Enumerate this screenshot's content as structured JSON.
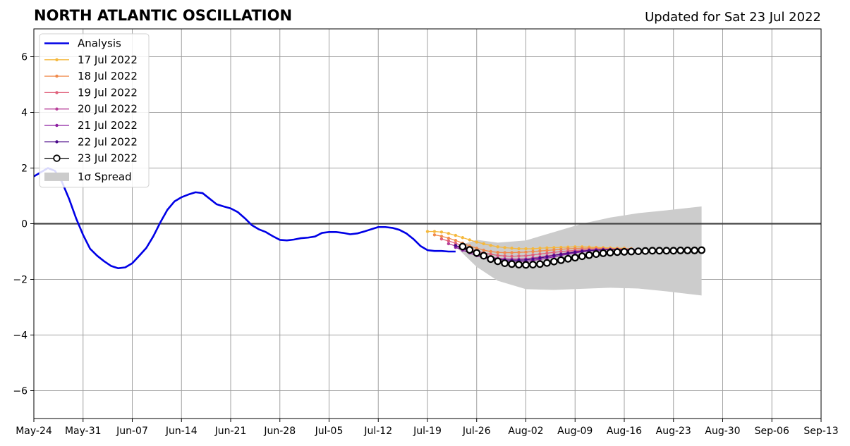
{
  "chart_data": {
    "type": "line",
    "title": "NORTH ATLANTIC OSCILLATION",
    "subtitle": "Updated for Sat 23 Jul 2022",
    "xlabel": "",
    "ylabel": "",
    "xlim": [
      "2022-05-24",
      "2022-09-13"
    ],
    "ylim": [
      -7,
      7
    ],
    "grid": true,
    "legend_position": "top-left",
    "x_ticks": [
      "2022-05-24",
      "2022-05-31",
      "2022-06-07",
      "2022-06-14",
      "2022-06-21",
      "2022-06-28",
      "2022-07-05",
      "2022-07-12",
      "2022-07-19",
      "2022-07-26",
      "2022-08-02",
      "2022-08-09",
      "2022-08-16",
      "2022-08-23",
      "2022-08-30",
      "2022-09-06",
      "2022-09-13"
    ],
    "x_tick_labels": [
      "May-24",
      "May-31",
      "Jun-07",
      "Jun-14",
      "Jun-21",
      "Jun-28",
      "Jul-05",
      "Jul-12",
      "Jul-19",
      "Jul-26",
      "Aug-02",
      "Aug-09",
      "Aug-16",
      "Aug-23",
      "Aug-30",
      "Sep-06",
      "Sep-13"
    ],
    "y_ticks": [
      -6,
      -4,
      -2,
      0,
      2,
      4,
      6
    ],
    "y_tick_labels": [
      "−6",
      "−4",
      "−2",
      "0",
      "2",
      "4",
      "6"
    ],
    "series": [
      {
        "name": "Analysis",
        "color": "#0000e6",
        "x": [
          "2022-05-24",
          "2022-05-26",
          "2022-05-27",
          "2022-05-28",
          "2022-05-29",
          "2022-05-30",
          "2022-05-31",
          "2022-06-01",
          "2022-06-02",
          "2022-06-03",
          "2022-06-04",
          "2022-06-05",
          "2022-06-06",
          "2022-06-07",
          "2022-06-08",
          "2022-06-09",
          "2022-06-10",
          "2022-06-11",
          "2022-06-12",
          "2022-06-13",
          "2022-06-14",
          "2022-06-15",
          "2022-06-16",
          "2022-06-17",
          "2022-06-18",
          "2022-06-19",
          "2022-06-20",
          "2022-06-21",
          "2022-06-22",
          "2022-06-23",
          "2022-06-24",
          "2022-06-25",
          "2022-06-26",
          "2022-06-27",
          "2022-06-28",
          "2022-06-29",
          "2022-06-30",
          "2022-07-01",
          "2022-07-02",
          "2022-07-03",
          "2022-07-04",
          "2022-07-05",
          "2022-07-06",
          "2022-07-07",
          "2022-07-08",
          "2022-07-09",
          "2022-07-10",
          "2022-07-11",
          "2022-07-12",
          "2022-07-13",
          "2022-07-14",
          "2022-07-15",
          "2022-07-16",
          "2022-07-17",
          "2022-07-18",
          "2022-07-19",
          "2022-07-20",
          "2022-07-21",
          "2022-07-22",
          "2022-07-23"
        ],
        "values": [
          1.7,
          2.0,
          1.9,
          1.5,
          0.9,
          0.2,
          -0.4,
          -0.9,
          -1.15,
          -1.35,
          -1.52,
          -1.6,
          -1.57,
          -1.42,
          -1.15,
          -0.87,
          -0.45,
          0.05,
          0.5,
          0.8,
          0.95,
          1.05,
          1.13,
          1.1,
          0.9,
          0.7,
          0.62,
          0.55,
          0.42,
          0.2,
          -0.05,
          -0.2,
          -0.3,
          -0.45,
          -0.58,
          -0.6,
          -0.57,
          -0.52,
          -0.5,
          -0.46,
          -0.33,
          -0.3,
          -0.3,
          -0.33,
          -0.38,
          -0.35,
          -0.28,
          -0.2,
          -0.12,
          -0.12,
          -0.15,
          -0.22,
          -0.35,
          -0.55,
          -0.8,
          -0.95,
          -0.98,
          -0.98,
          -1.0,
          -1.0
        ]
      },
      {
        "name": "17 Jul 2022",
        "color": "#f5b83d",
        "x": [
          "2022-07-19",
          "2022-07-20",
          "2022-07-21",
          "2022-07-22",
          "2022-07-23",
          "2022-07-24",
          "2022-07-25",
          "2022-07-26",
          "2022-07-27",
          "2022-07-28",
          "2022-07-29",
          "2022-07-30",
          "2022-07-31",
          "2022-08-01",
          "2022-08-02",
          "2022-08-03",
          "2022-08-04",
          "2022-08-05",
          "2022-08-06",
          "2022-08-07",
          "2022-08-08",
          "2022-08-09",
          "2022-08-10",
          "2022-08-11",
          "2022-08-12",
          "2022-08-13",
          "2022-08-14",
          "2022-08-15",
          "2022-08-16"
        ],
        "values": [
          -0.28,
          -0.28,
          -0.3,
          -0.35,
          -0.42,
          -0.5,
          -0.58,
          -0.66,
          -0.72,
          -0.78,
          -0.83,
          -0.86,
          -0.88,
          -0.9,
          -0.9,
          -0.9,
          -0.88,
          -0.87,
          -0.86,
          -0.85,
          -0.84,
          -0.83,
          -0.83,
          -0.84,
          -0.85,
          -0.86,
          -0.87,
          -0.88,
          -0.88
        ]
      },
      {
        "name": "18 Jul 2022",
        "color": "#f08a4b",
        "x": [
          "2022-07-20",
          "2022-07-21",
          "2022-07-22",
          "2022-07-23",
          "2022-07-24",
          "2022-07-25",
          "2022-07-26",
          "2022-07-27",
          "2022-07-28",
          "2022-07-29",
          "2022-07-30",
          "2022-07-31",
          "2022-08-01",
          "2022-08-02",
          "2022-08-03",
          "2022-08-04",
          "2022-08-05",
          "2022-08-06",
          "2022-08-07",
          "2022-08-08",
          "2022-08-09",
          "2022-08-10",
          "2022-08-11",
          "2022-08-12",
          "2022-08-13",
          "2022-08-14",
          "2022-08-15",
          "2022-08-16",
          "2022-08-17"
        ],
        "values": [
          -0.4,
          -0.45,
          -0.52,
          -0.6,
          -0.7,
          -0.8,
          -0.88,
          -0.95,
          -1.0,
          -1.03,
          -1.04,
          -1.04,
          -1.03,
          -1.02,
          -1.0,
          -0.98,
          -0.96,
          -0.94,
          -0.92,
          -0.9,
          -0.89,
          -0.88,
          -0.88,
          -0.88,
          -0.89,
          -0.9,
          -0.9,
          -0.9,
          -0.9
        ]
      },
      {
        "name": "19 Jul 2022",
        "color": "#e0607a",
        "x": [
          "2022-07-21",
          "2022-07-22",
          "2022-07-23",
          "2022-07-24",
          "2022-07-25",
          "2022-07-26",
          "2022-07-27",
          "2022-07-28",
          "2022-07-29",
          "2022-07-30",
          "2022-07-31",
          "2022-08-01",
          "2022-08-02",
          "2022-08-03",
          "2022-08-04",
          "2022-08-05",
          "2022-08-06",
          "2022-08-07",
          "2022-08-08",
          "2022-08-09",
          "2022-08-10",
          "2022-08-11",
          "2022-08-12",
          "2022-08-13",
          "2022-08-14",
          "2022-08-15",
          "2022-08-16",
          "2022-08-17",
          "2022-08-18"
        ],
        "values": [
          -0.55,
          -0.62,
          -0.7,
          -0.8,
          -0.9,
          -0.98,
          -1.05,
          -1.1,
          -1.14,
          -1.16,
          -1.17,
          -1.16,
          -1.15,
          -1.12,
          -1.09,
          -1.06,
          -1.03,
          -1.0,
          -0.98,
          -0.96,
          -0.94,
          -0.93,
          -0.92,
          -0.92,
          -0.92,
          -0.92,
          -0.93,
          -0.93,
          -0.93
        ]
      },
      {
        "name": "20 Jul 2022",
        "color": "#b8409a",
        "x": [
          "2022-07-22",
          "2022-07-23",
          "2022-07-24",
          "2022-07-25",
          "2022-07-26",
          "2022-07-27",
          "2022-07-28",
          "2022-07-29",
          "2022-07-30",
          "2022-07-31",
          "2022-08-01",
          "2022-08-02",
          "2022-08-03",
          "2022-08-04",
          "2022-08-05",
          "2022-08-06",
          "2022-08-07",
          "2022-08-08",
          "2022-08-09",
          "2022-08-10",
          "2022-08-11",
          "2022-08-12",
          "2022-08-13",
          "2022-08-14",
          "2022-08-15",
          "2022-08-16",
          "2022-08-17",
          "2022-08-18",
          "2022-08-19"
        ],
        "values": [
          -0.72,
          -0.8,
          -0.9,
          -1.0,
          -1.08,
          -1.15,
          -1.2,
          -1.24,
          -1.26,
          -1.27,
          -1.27,
          -1.26,
          -1.23,
          -1.2,
          -1.16,
          -1.12,
          -1.08,
          -1.04,
          -1.0,
          -0.97,
          -0.95,
          -0.93,
          -0.92,
          -0.92,
          -0.92,
          -0.93,
          -0.93,
          -0.94,
          -0.94
        ]
      },
      {
        "name": "21 Jul 2022",
        "color": "#8c1fa0",
        "x": [
          "2022-07-23",
          "2022-07-24",
          "2022-07-25",
          "2022-07-26",
          "2022-07-27",
          "2022-07-28",
          "2022-07-29",
          "2022-07-30",
          "2022-07-31",
          "2022-08-01",
          "2022-08-02",
          "2022-08-03",
          "2022-08-04",
          "2022-08-05",
          "2022-08-06",
          "2022-08-07",
          "2022-08-08",
          "2022-08-09",
          "2022-08-10",
          "2022-08-11",
          "2022-08-12",
          "2022-08-13",
          "2022-08-14",
          "2022-08-15",
          "2022-08-16",
          "2022-08-17",
          "2022-08-18",
          "2022-08-19",
          "2022-08-20"
        ],
        "values": [
          -0.85,
          -0.95,
          -1.05,
          -1.15,
          -1.22,
          -1.28,
          -1.32,
          -1.35,
          -1.36,
          -1.36,
          -1.35,
          -1.32,
          -1.28,
          -1.24,
          -1.19,
          -1.14,
          -1.09,
          -1.05,
          -1.01,
          -0.98,
          -0.96,
          -0.94,
          -0.93,
          -0.93,
          -0.93,
          -0.93,
          -0.94,
          -0.94,
          -0.94
        ]
      },
      {
        "name": "22 Jul 2022",
        "color": "#4b0a8a",
        "x": [
          "2022-07-23",
          "2022-07-24",
          "2022-07-25",
          "2022-07-26",
          "2022-07-27",
          "2022-07-28",
          "2022-07-29",
          "2022-07-30",
          "2022-07-31",
          "2022-08-01",
          "2022-08-02",
          "2022-08-03",
          "2022-08-04",
          "2022-08-05",
          "2022-08-06",
          "2022-08-07",
          "2022-08-08",
          "2022-08-09",
          "2022-08-10",
          "2022-08-11",
          "2022-08-12",
          "2022-08-13",
          "2022-08-14",
          "2022-08-15",
          "2022-08-16",
          "2022-08-17",
          "2022-08-18",
          "2022-08-19",
          "2022-08-20",
          "2022-08-21"
        ],
        "values": [
          -0.78,
          -0.88,
          -0.98,
          -1.08,
          -1.16,
          -1.22,
          -1.27,
          -1.3,
          -1.31,
          -1.31,
          -1.3,
          -1.27,
          -1.23,
          -1.19,
          -1.14,
          -1.1,
          -1.06,
          -1.02,
          -0.99,
          -0.96,
          -0.95,
          -0.94,
          -0.93,
          -0.93,
          -0.93,
          -0.93,
          -0.94,
          -0.94,
          -0.95,
          -0.95
        ]
      },
      {
        "name": "23 Jul 2022",
        "color": "#000000",
        "x": [
          "2022-07-24",
          "2022-07-25",
          "2022-07-26",
          "2022-07-27",
          "2022-07-28",
          "2022-07-29",
          "2022-07-30",
          "2022-07-31",
          "2022-08-01",
          "2022-08-02",
          "2022-08-03",
          "2022-08-04",
          "2022-08-05",
          "2022-08-06",
          "2022-08-07",
          "2022-08-08",
          "2022-08-09",
          "2022-08-10",
          "2022-08-11",
          "2022-08-12",
          "2022-08-13",
          "2022-08-14",
          "2022-08-15",
          "2022-08-16",
          "2022-08-17",
          "2022-08-18",
          "2022-08-19",
          "2022-08-20",
          "2022-08-21",
          "2022-08-22",
          "2022-08-23",
          "2022-08-24",
          "2022-08-25",
          "2022-08-26",
          "2022-08-27"
        ],
        "values": [
          -0.82,
          -0.94,
          -1.05,
          -1.15,
          -1.27,
          -1.35,
          -1.42,
          -1.45,
          -1.47,
          -1.48,
          -1.47,
          -1.45,
          -1.41,
          -1.36,
          -1.31,
          -1.26,
          -1.22,
          -1.17,
          -1.13,
          -1.09,
          -1.06,
          -1.04,
          -1.02,
          -1.01,
          -1.0,
          -0.99,
          -0.98,
          -0.97,
          -0.97,
          -0.97,
          -0.97,
          -0.96,
          -0.96,
          -0.96,
          -0.95
        ]
      }
    ],
    "spread": {
      "name": "1σ Spread",
      "color": "#cccccc",
      "x": [
        "2022-07-23",
        "2022-07-26",
        "2022-07-29",
        "2022-08-02",
        "2022-08-06",
        "2022-08-10",
        "2022-08-14",
        "2022-08-18",
        "2022-08-22",
        "2022-08-27"
      ],
      "upper": [
        -0.82,
        -0.58,
        -0.68,
        -0.6,
        -0.3,
        0.0,
        0.22,
        0.38,
        0.48,
        0.62
      ],
      "lower": [
        -0.82,
        -1.55,
        -2.05,
        -2.35,
        -2.38,
        -2.34,
        -2.3,
        -2.33,
        -2.43,
        -2.58
      ]
    }
  }
}
